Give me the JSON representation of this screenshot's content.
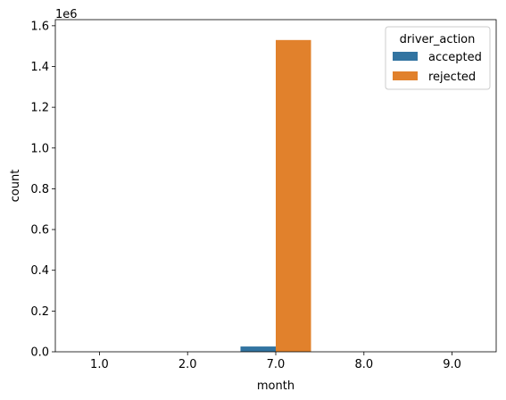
{
  "chart_data": {
    "type": "bar",
    "xlabel": "month",
    "ylabel": "count",
    "scale_label": "1e6",
    "categories": [
      "1.0",
      "2.0",
      "7.0",
      "8.0",
      "9.0"
    ],
    "ylim": [
      0,
      1.63
    ],
    "yticks": [
      0.0,
      0.2,
      0.4,
      0.6,
      0.8,
      1.0,
      1.2,
      1.4,
      1.6
    ],
    "ytick_labels": [
      "0.0",
      "0.2",
      "0.4",
      "0.6",
      "0.8",
      "1.0",
      "1.2",
      "1.4",
      "1.6"
    ],
    "legend_title": "driver_action",
    "legend_position": "top-right",
    "grid": false,
    "series": [
      {
        "name": "accepted",
        "color": "#3274a1",
        "values": [
          0,
          0,
          0.026,
          0,
          0
        ]
      },
      {
        "name": "rejected",
        "color": "#e1812c",
        "values": [
          0,
          0,
          1.53,
          0,
          0
        ]
      }
    ]
  }
}
